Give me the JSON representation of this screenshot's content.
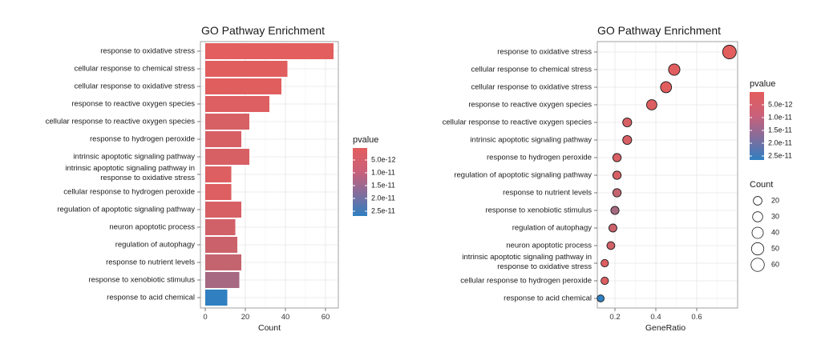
{
  "chart_data": [
    {
      "type": "bar",
      "orientation": "horizontal",
      "title": "GO Pathway Enrichment",
      "xlabel": "Count",
      "ylabel": "",
      "xlim": [
        0,
        65
      ],
      "xticks": [
        "0",
        "20",
        "40",
        "60"
      ],
      "categories": [
        "response to oxidative stress",
        "cellular response to chemical stress",
        "cellular response to oxidative stress",
        "response to reactive oxygen species",
        "cellular response to reactive oxygen species",
        "response to hydrogen peroxide",
        "intrinsic apoptotic signaling pathway",
        "intrinsic apoptotic signaling pathway in\nresponse to oxidative stress",
        "cellular response to hydrogen peroxide",
        "regulation of apoptotic signaling pathway",
        "neuron apoptotic process",
        "regulation of autophagy",
        "response to nutrient levels",
        "response to xenobiotic stimulus",
        "response to acid chemical"
      ],
      "values": [
        64,
        41,
        38,
        32,
        22,
        18,
        22,
        13,
        13,
        18,
        15,
        16,
        18,
        17,
        11
      ],
      "pvalues": [
        1e-13,
        5e-13,
        5e-13,
        1e-12,
        2e-12,
        2e-12,
        2e-12,
        1e-12,
        1e-12,
        2e-12,
        3e-12,
        4e-12,
        5e-12,
        1e-11,
        2.9e-11
      ],
      "legend": {
        "title": "pvalue",
        "labels": [
          "5.0e-12",
          "1.0e-11",
          "1.5e-11",
          "2.0e-11",
          "2.5e-11"
        ],
        "low_color": "#E35E5E",
        "high_color": "#2F7FC1"
      }
    },
    {
      "type": "scatter",
      "title": "GO Pathway Enrichment",
      "xlabel": "GeneRatio",
      "ylabel": "",
      "xlim": [
        0.1,
        0.78
      ],
      "xticks": [
        "0.2",
        "0.4",
        "0.6"
      ],
      "categories": [
        "response to oxidative stress",
        "cellular response to chemical stress",
        "cellular response to oxidative stress",
        "response to reactive oxygen species",
        "cellular response to reactive oxygen species",
        "intrinsic apoptotic signaling pathway",
        "response to hydrogen peroxide",
        "regulation of apoptotic signaling pathway",
        "response to nutrient levels",
        "response to xenobiotic stimulus",
        "regulation of autophagy",
        "neuron apoptotic process",
        "intrinsic apoptotic signaling pathway in\nresponse to oxidative stress",
        "cellular response to hydrogen peroxide",
        "response to acid chemical"
      ],
      "gene_ratio": [
        0.76,
        0.49,
        0.45,
        0.38,
        0.26,
        0.26,
        0.21,
        0.21,
        0.21,
        0.2,
        0.19,
        0.18,
        0.15,
        0.15,
        0.13
      ],
      "counts": [
        64,
        41,
        38,
        32,
        22,
        22,
        18,
        18,
        18,
        17,
        16,
        15,
        13,
        13,
        11
      ],
      "pvalues": [
        1e-13,
        5e-13,
        5e-13,
        1e-12,
        2e-12,
        2e-12,
        2e-12,
        2e-12,
        5e-12,
        1e-11,
        4e-12,
        3e-12,
        1e-12,
        1e-12,
        2.9e-11
      ],
      "legend": {
        "title": "pvalue",
        "labels": [
          "5.0e-12",
          "1.0e-11",
          "1.5e-11",
          "2.0e-11",
          "2.5e-11"
        ],
        "size_title": "Count",
        "size_labels": [
          "20",
          "30",
          "40",
          "50",
          "60"
        ],
        "low_color": "#E35E5E",
        "high_color": "#2F7FC1"
      }
    }
  ]
}
